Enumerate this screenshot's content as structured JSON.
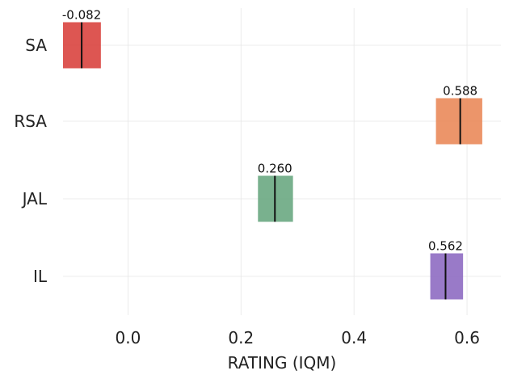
{
  "chart_data": {
    "type": "bar",
    "orientation": "horizontal",
    "chart_style": "interval",
    "title": "",
    "xlabel": "RATING (IQM)",
    "ylabel": "",
    "xlim": [
      -0.115,
      0.66
    ],
    "xticks": [
      0.0,
      0.2,
      0.4,
      0.6
    ],
    "xtick_labels": [
      "0.0",
      "0.2",
      "0.4",
      "0.6"
    ],
    "grid": true,
    "legend": "none",
    "categories": [
      "SA",
      "RSA",
      "JAL",
      "IL"
    ],
    "series": [
      {
        "values": [
          -0.082,
          0.588,
          0.26,
          0.562
        ],
        "value_labels": [
          "-0.082",
          "0.588",
          "0.260",
          "0.562"
        ],
        "ci_low": [
          -0.115,
          0.545,
          0.23,
          0.535
        ],
        "ci_high": [
          -0.048,
          0.627,
          0.292,
          0.593
        ],
        "colors": [
          "#d9443f",
          "#ea8a5a",
          "#6aa882",
          "#8e6bc2"
        ]
      }
    ]
  }
}
